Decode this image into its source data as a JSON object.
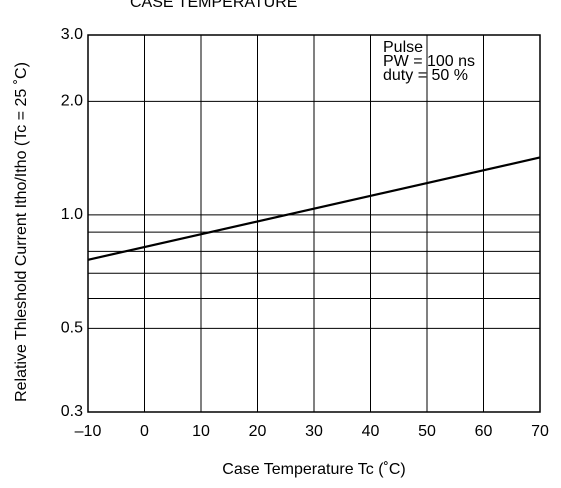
{
  "chart_data": {
    "type": "line",
    "title": "CASE TEMPERATURE",
    "x_label": "Case Temperature  Tc (˚C)",
    "y_label": "Relative Thleshold Current  Itho/Itho (Tc = 25 ˚C)",
    "annotations": [
      "Pulse",
      "PW = 100 ns",
      "duty = 50 %"
    ],
    "x": [
      -10,
      70
    ],
    "series": [
      {
        "color": "#000000",
        "values": [
          0.76,
          1.42
        ]
      }
    ],
    "xlim": [
      -10,
      70
    ],
    "xticks": [
      {
        "value": -10,
        "label": "–10"
      },
      0,
      10,
      20,
      30,
      40,
      50,
      60,
      70
    ],
    "ylim": [
      0.3,
      3
    ],
    "yticks": [
      {
        "value": 0.3,
        "label": "0.3"
      },
      {
        "value": 0.5,
        "label": "0.5"
      },
      {
        "value": 1,
        "label": "1.0"
      },
      {
        "value": 2,
        "label": "2.0"
      },
      {
        "value": 3,
        "label": "3.0"
      }
    ],
    "y_minor_grid": [
      0.6,
      0.7,
      0.8,
      0.9
    ],
    "y_log": true,
    "grid": true
  }
}
